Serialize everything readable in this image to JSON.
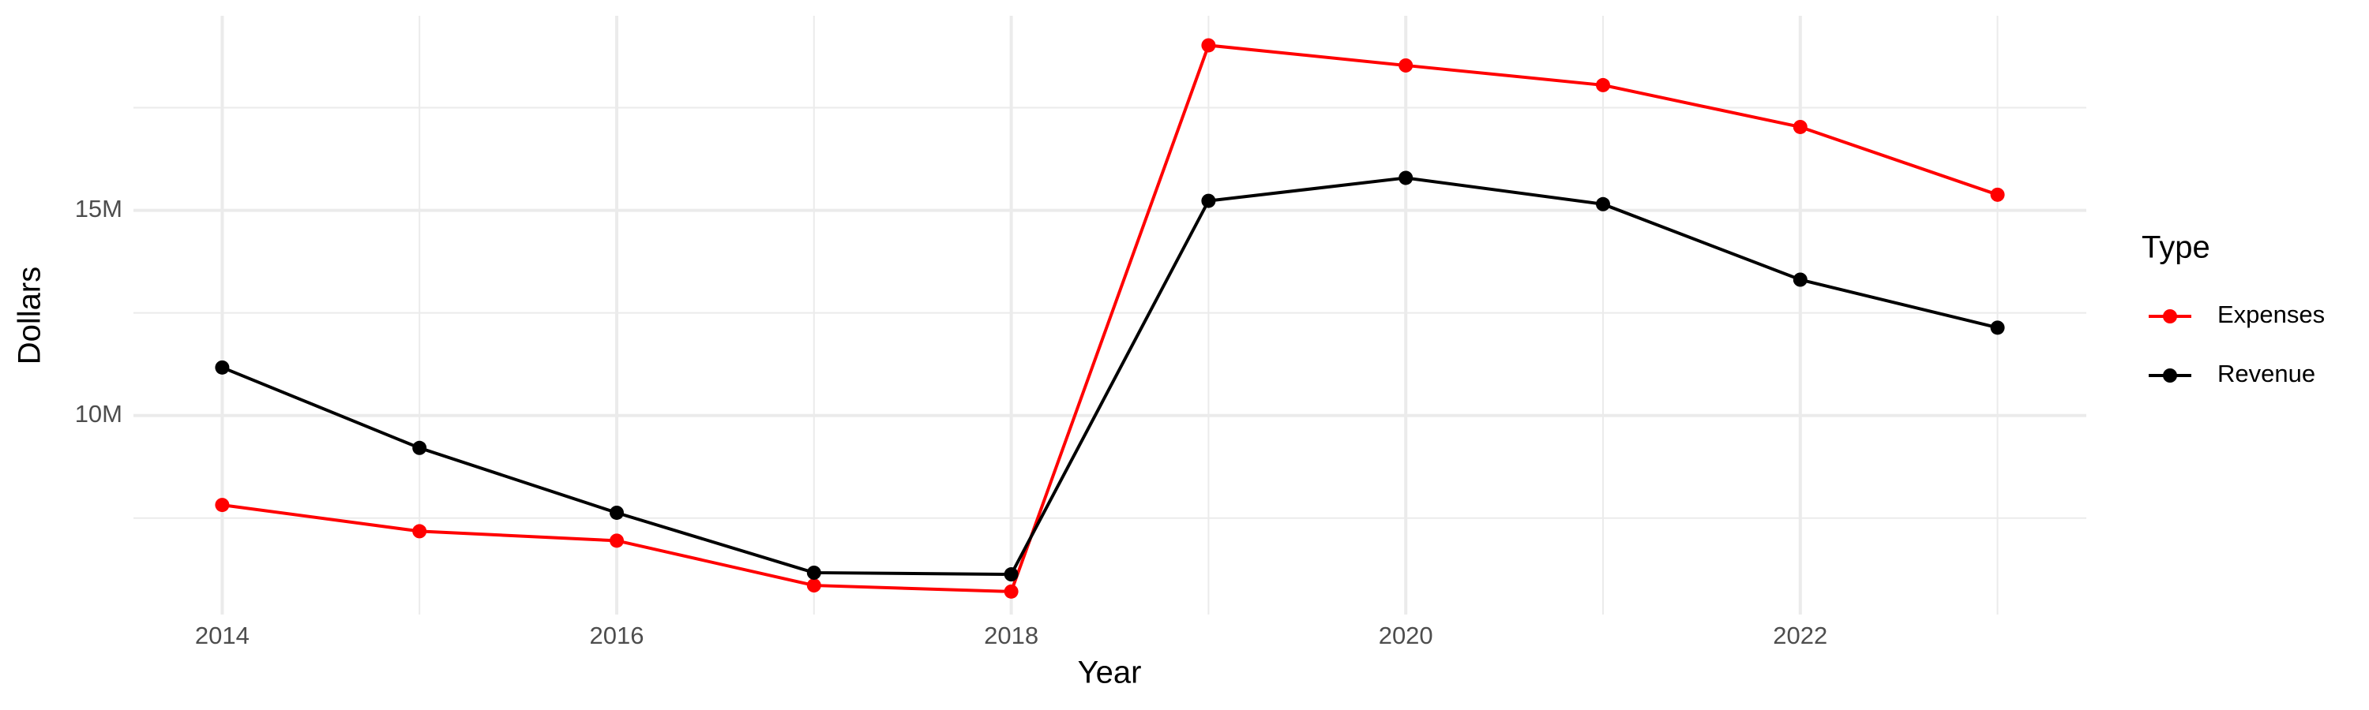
{
  "chart_data": {
    "type": "line",
    "x_label": "Year",
    "y_label": "Dollars",
    "legend_title": "Type",
    "x": [
      2014,
      2015,
      2016,
      2017,
      2018,
      2019,
      2020,
      2021,
      2022,
      2023
    ],
    "series": [
      {
        "name": "Expenses",
        "color": "#ff0000",
        "values": [
          7820000,
          7180000,
          6950000,
          5860000,
          5710000,
          19020000,
          18530000,
          18050000,
          17030000,
          15380000
        ]
      },
      {
        "name": "Revenue",
        "color": "#000000",
        "values": [
          11170000,
          9210000,
          7630000,
          6170000,
          6130000,
          15230000,
          15790000,
          15150000,
          13310000,
          12140000
        ]
      }
    ],
    "xlim": [
      2013.55,
      2023.45
    ],
    "xticks": [
      2014,
      2016,
      2018,
      2020,
      2022
    ],
    "minor_xticks": [
      2015,
      2017,
      2019,
      2021,
      2023
    ],
    "ylim": [
      5150000,
      19740000
    ],
    "yticks": [
      {
        "value": 10000000,
        "label": "10M"
      },
      {
        "value": 15000000,
        "label": "15M"
      }
    ],
    "minor_yticks": [
      7500000,
      12500000,
      17500000
    ],
    "grid": true,
    "legend_position": "right"
  }
}
